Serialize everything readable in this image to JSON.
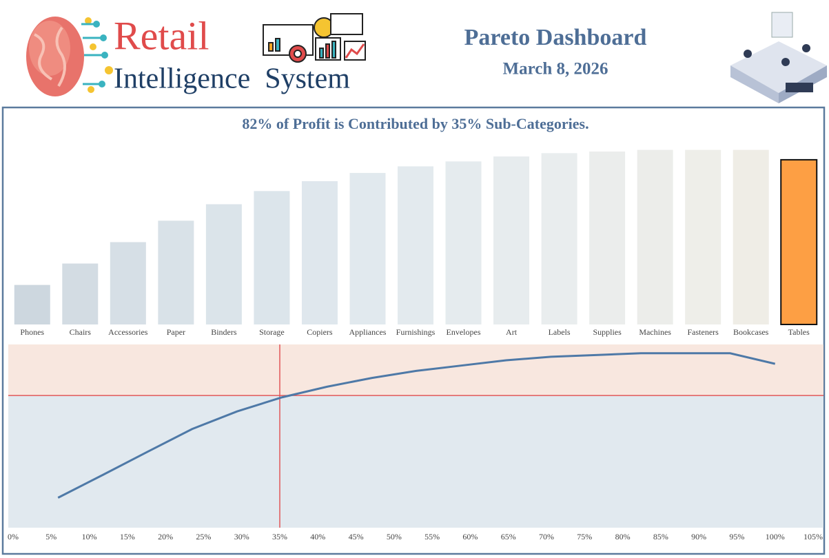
{
  "header": {
    "logo_word": "Retail",
    "logo_subtitle": "Intelligence  System",
    "title": "Pareto Dashboard",
    "date": "March 8, 2026"
  },
  "chart_data": [
    {
      "type": "bar",
      "title": "82% of Profit is Contributed by 35% Sub-Categories.",
      "categories": [
        "Phones",
        "Chairs",
        "Accessories",
        "Paper",
        "Binders",
        "Storage",
        "Copiers",
        "Appliances",
        "Furnishings",
        "Envelopes",
        "Art",
        "Labels",
        "Supplies",
        "Machines",
        "Fasteners",
        "Bookcases",
        "Tables"
      ],
      "values": [
        24,
        37,
        50,
        63,
        73,
        81,
        87,
        92,
        96,
        99,
        102,
        104,
        105,
        106,
        106,
        106,
        100
      ],
      "colors": [
        "#cdd7df",
        "#d3dce3",
        "#d6dfe6",
        "#d9e2e8",
        "#dbe4ea",
        "#dce5eb",
        "#dfe7ed",
        "#e1e9ee",
        "#e3eaee",
        "#e5ebee",
        "#e7ecee",
        "#e9edee",
        "#ebedec",
        "#ecedea",
        "#eeeee9",
        "#efede6",
        "#fd9f44"
      ],
      "ylim": [
        0,
        110
      ]
    },
    {
      "type": "line",
      "color": "#4e79a7",
      "x": [
        5.9,
        11.8,
        17.6,
        23.5,
        29.4,
        35.3,
        41.2,
        47.1,
        52.9,
        58.8,
        64.7,
        70.6,
        76.5,
        82.4,
        88.2,
        94.1,
        100
      ],
      "values": [
        24,
        37,
        50,
        63,
        73,
        81,
        87,
        92,
        96,
        99,
        102,
        104,
        105,
        106,
        106,
        106,
        100
      ],
      "xlim": [
        0,
        105
      ],
      "ylim": [
        7,
        111
      ],
      "xticks": [
        {
          "value": 0,
          "label": "0%"
        },
        {
          "value": 5,
          "label": "5%"
        },
        {
          "value": 10,
          "label": "10%"
        },
        {
          "value": 15,
          "label": "15%"
        },
        {
          "value": 20,
          "label": "20%"
        },
        {
          "value": 25,
          "label": "25%"
        },
        {
          "value": 30,
          "label": "30%"
        },
        {
          "value": 35,
          "label": "35%"
        },
        {
          "value": 40,
          "label": "40%"
        },
        {
          "value": 45,
          "label": "45%"
        },
        {
          "value": 50,
          "label": "50%"
        },
        {
          "value": 55,
          "label": "55%"
        },
        {
          "value": 60,
          "label": "60%"
        },
        {
          "value": 65,
          "label": "65%"
        },
        {
          "value": 70,
          "label": "70%"
        },
        {
          "value": 75,
          "label": "75%"
        },
        {
          "value": 80,
          "label": "80%"
        },
        {
          "value": 85,
          "label": "85%"
        },
        {
          "value": 90,
          "label": "90%"
        },
        {
          "value": 95,
          "label": "95%"
        },
        {
          "value": 100,
          "label": "100%"
        },
        {
          "value": 105,
          "label": "105%"
        }
      ],
      "reference_x": 35,
      "reference_y": 82,
      "reference_color": "#e15759",
      "upper_band_color": "#f8e7df",
      "lower_band_color": "#e1e9ef"
    }
  ]
}
